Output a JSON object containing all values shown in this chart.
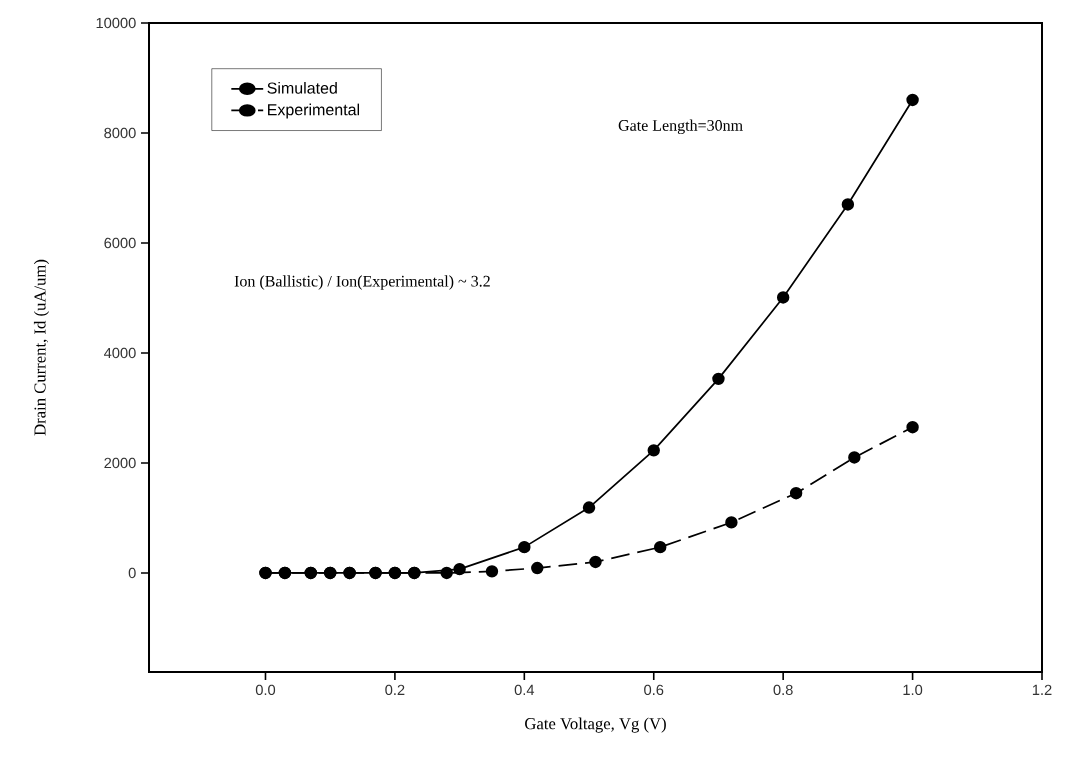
{
  "chart_data": {
    "type": "line",
    "xlabel": "Gate Voltage, Vg (V)",
    "ylabel": "Drain Current, Id (uA/um)",
    "annotations": [
      "Gate Length=30nm",
      "Ion (Ballistic) / Ion(Experimental) ~  3.2"
    ],
    "xlim": [
      -0.18,
      1.2
    ],
    "xticks": [
      {
        "value": 0,
        "label": "0.0"
      },
      0.2,
      0.4,
      0.6,
      0.8,
      {
        "value": 1,
        "label": "1.0"
      },
      1.2
    ],
    "ylim": [
      -1800,
      10000
    ],
    "yticks": [
      0,
      2000,
      4000,
      6000,
      8000,
      10000
    ],
    "grid": false,
    "legend": "top left",
    "marker": "circle",
    "series": [
      {
        "name": "Simulated",
        "color": "#000000",
        "line_style": "solid",
        "x": [
          0,
          0.03,
          0.07,
          0.1,
          0.13,
          0.17,
          0.2,
          0.23,
          0.3,
          0.4,
          0.5,
          0.6,
          0.7,
          0.8,
          0.9,
          1.0
        ],
        "values": [
          0,
          0,
          0,
          0,
          0,
          0,
          0,
          0,
          70,
          470,
          1190,
          2230,
          3530,
          5010,
          6700,
          8600
        ]
      },
      {
        "name": "Experimental",
        "color": "#000000",
        "line_style": "dashed",
        "x": [
          0,
          0.03,
          0.07,
          0.1,
          0.13,
          0.17,
          0.2,
          0.23,
          0.28,
          0.35,
          0.42,
          0.51,
          0.61,
          0.72,
          0.82,
          0.91,
          1.0
        ],
        "values": [
          0,
          0,
          0,
          0,
          0,
          0,
          0,
          0,
          0,
          30,
          90,
          200,
          470,
          920,
          1450,
          2100,
          2650
        ]
      }
    ]
  }
}
